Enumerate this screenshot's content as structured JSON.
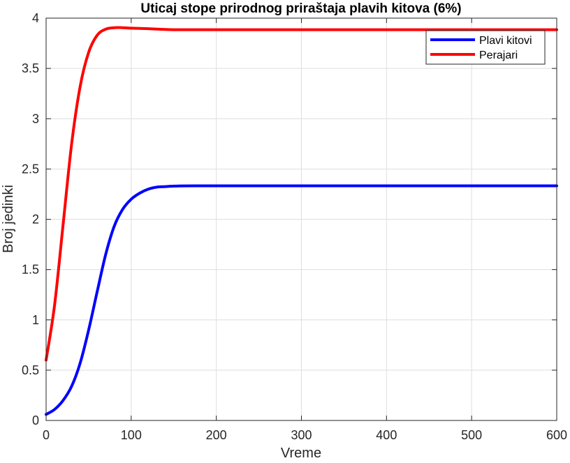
{
  "chart_data": {
    "type": "line",
    "title": "Uticaj stope prirodnog priraštaja plavih kitova (6%)",
    "xlabel": "Vreme",
    "ylabel": "Broj jedinki",
    "xlim": [
      0,
      600
    ],
    "ylim": [
      0,
      4
    ],
    "xticks": [
      0,
      100,
      200,
      300,
      400,
      500,
      600
    ],
    "yticks": [
      0,
      0.5,
      1,
      1.5,
      2,
      2.5,
      3,
      3.5,
      4
    ],
    "xtick_labels": [
      "0",
      "100",
      "200",
      "300",
      "400",
      "500",
      "600"
    ],
    "ytick_labels": [
      "0",
      "0.5",
      "1",
      "1.5",
      "2",
      "2.5",
      "3",
      "3.5",
      "4"
    ],
    "grid": true,
    "legend_position": "top-right",
    "series": [
      {
        "name": "Plavi kitovi",
        "color": "#0000ff",
        "x": [
          0,
          10,
          20,
          30,
          40,
          50,
          60,
          70,
          80,
          90,
          100,
          110,
          120,
          130,
          140,
          150,
          160,
          175,
          200,
          250,
          300,
          400,
          500,
          600
        ],
        "y": [
          0.06,
          0.11,
          0.2,
          0.34,
          0.57,
          0.9,
          1.28,
          1.65,
          1.93,
          2.1,
          2.2,
          2.26,
          2.3,
          2.32,
          2.325,
          2.33,
          2.332,
          2.333,
          2.333,
          2.333,
          2.333,
          2.333,
          2.333,
          2.333
        ]
      },
      {
        "name": "Perajari",
        "color": "#ff0000",
        "x": [
          0,
          10,
          20,
          30,
          40,
          50,
          60,
          70,
          80,
          90,
          100,
          120,
          150,
          200,
          300,
          400,
          500,
          600
        ],
        "y": [
          0.6,
          1.15,
          1.95,
          2.75,
          3.32,
          3.66,
          3.83,
          3.89,
          3.905,
          3.905,
          3.9,
          3.895,
          3.885,
          3.885,
          3.885,
          3.885,
          3.885,
          3.885
        ]
      }
    ]
  }
}
